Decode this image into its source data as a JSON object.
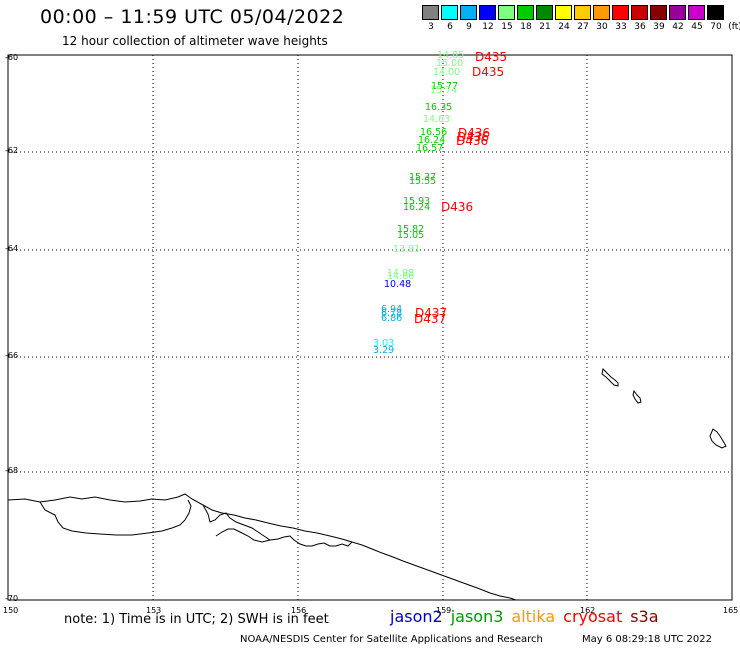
{
  "header": {
    "title": "00:00 – 11:59 UTC 05/04/2022",
    "subtitle": "12 hour collection of altimeter wave heights"
  },
  "color_scale": {
    "labels": [
      "3",
      "6",
      "9",
      "12",
      "15",
      "18",
      "21",
      "24",
      "27",
      "30",
      "33",
      "36",
      "39",
      "42",
      "45",
      "70",
      "(ft)"
    ],
    "colors": [
      "#808080",
      "#00ffff",
      "#00b0f0",
      "#0000ff",
      "#80ff80",
      "#00cc00",
      "#008800",
      "#ffff00",
      "#ffcc00",
      "#ff9900",
      "#ff0000",
      "#cc0000",
      "#880000",
      "#990099",
      "#cc00cc",
      "#000000"
    ]
  },
  "axes": {
    "lat_labels": [
      "-60",
      "-62",
      "-64",
      "-66",
      "-68",
      "-70"
    ],
    "lon_labels": [
      "150",
      "153",
      "156",
      "159",
      "162",
      "165"
    ]
  },
  "measurements": [
    {
      "text": "14.85",
      "color": "#80ff80"
    },
    {
      "text": "15.00",
      "color": "#80ff80"
    },
    {
      "text": "14.00",
      "color": "#80ff80"
    },
    {
      "text": "15.77",
      "color": "#00cc00"
    },
    {
      "text": "15.74",
      "color": "#80ff80"
    },
    {
      "text": "16.35",
      "color": "#00cc00"
    },
    {
      "text": "14.63",
      "color": "#80ff80"
    },
    {
      "text": "16.56",
      "color": "#00cc00"
    },
    {
      "text": "16.24",
      "color": "#00cc00"
    },
    {
      "text": "16.57",
      "color": "#00cc00"
    },
    {
      "text": "15.37",
      "color": "#00cc00"
    },
    {
      "text": "15.55",
      "color": "#00cc00"
    },
    {
      "text": "15.93",
      "color": "#00cc00"
    },
    {
      "text": "16.24",
      "color": "#00cc00"
    },
    {
      "text": "15.82",
      "color": "#00cc00"
    },
    {
      "text": "15.05",
      "color": "#00cc00"
    },
    {
      "text": "13.81",
      "color": "#80ff80"
    },
    {
      "text": "14.98",
      "color": "#80ff80"
    },
    {
      "text": "14.66",
      "color": "#80ff80"
    },
    {
      "text": "10.48",
      "color": "#0000ff"
    },
    {
      "text": "6.94",
      "color": "#00b0f0"
    },
    {
      "text": "6.78",
      "color": "#00b0f0"
    },
    {
      "text": "6.86",
      "color": "#00b0f0"
    },
    {
      "text": "3.03",
      "color": "#00ffff"
    },
    {
      "text": "3.29",
      "color": "#00b0f0"
    }
  ],
  "pass_labels": [
    {
      "text": "D435",
      "color": "#ff0000"
    },
    {
      "text": "D435",
      "color": "#ff0000"
    },
    {
      "text": "D436",
      "color": "#ff0000"
    },
    {
      "text": "D436",
      "color": "#ff0000"
    },
    {
      "text": "D436",
      "color": "#ff0000"
    },
    {
      "text": "D436",
      "color": "#ff0000"
    },
    {
      "text": "D437",
      "color": "#ff0000"
    },
    {
      "text": "D437",
      "color": "#ff0000"
    }
  ],
  "footer": {
    "note": "note: 1) Time is in UTC; 2) SWH is in feet",
    "satellites": [
      {
        "name": "jason2",
        "color": "#0000cc"
      },
      {
        "name": "jason3",
        "color": "#009900"
      },
      {
        "name": "altika",
        "color": "#ff9900"
      },
      {
        "name": "cryosat",
        "color": "#ff0000"
      },
      {
        "name": "s3a",
        "color": "#880000"
      }
    ],
    "credit": "NOAA/NESDIS Center for Satellite Applications and Research",
    "timestamp": "May  6 08:29:18 UTC 2022"
  }
}
